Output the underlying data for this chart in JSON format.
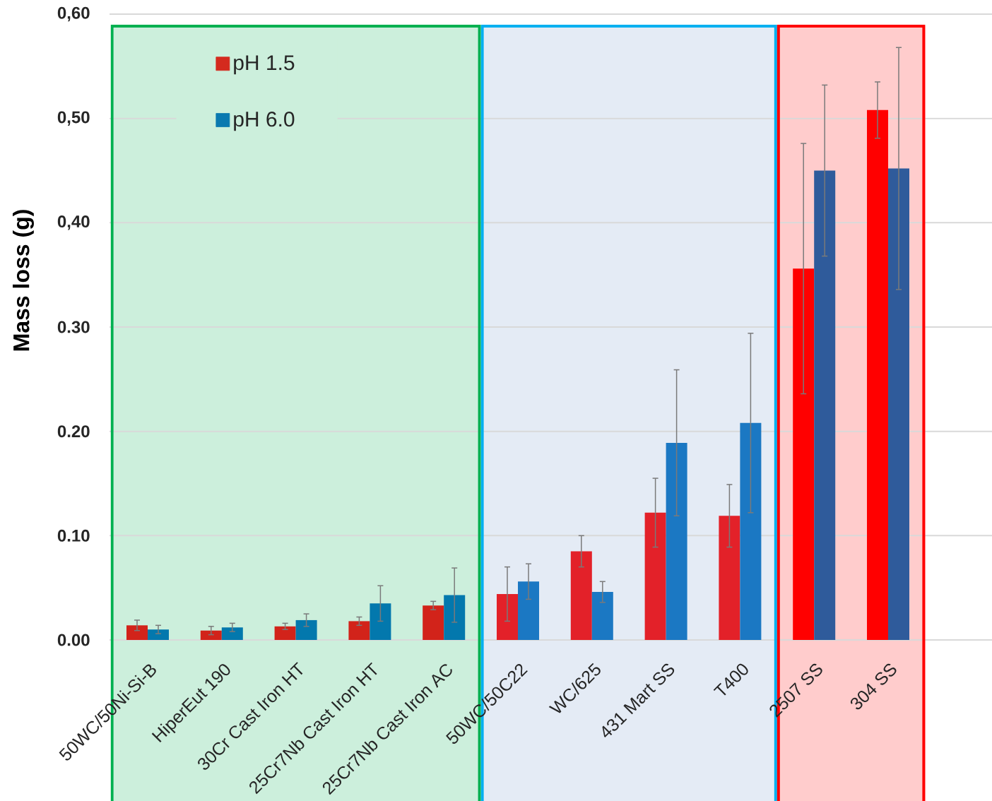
{
  "chart_data": {
    "type": "bar",
    "ylabel": "Mass loss (g)",
    "categories": [
      "50WC/50Ni-Si-B",
      "HiperEut 190",
      "30Cr Cast Iron HT",
      "25Cr7Nb Cast Iron HT",
      "25Cr7Nb Cast Iron AC",
      "50WC/50C22",
      "WC/625",
      "431 Mart SS",
      "T400",
      "2507 SS",
      "304 SS"
    ],
    "series": [
      {
        "name": "pH 1.5",
        "color": "#d42a1e",
        "colors": [
          "#d2231a",
          "#d2231a",
          "#d2231a",
          "#d2231a",
          "#d2231a",
          "#e32129",
          "#e32129",
          "#e32129",
          "#e32129",
          "#ff0000",
          "#ff0000"
        ],
        "values": [
          0.014,
          0.009,
          0.013,
          0.018,
          0.033,
          0.044,
          0.085,
          0.122,
          0.119,
          0.356,
          0.508
        ],
        "errors": [
          0.005,
          0.004,
          0.003,
          0.004,
          0.004,
          0.026,
          0.015,
          0.033,
          0.03,
          0.12,
          0.027
        ]
      },
      {
        "name": "pH 6.0",
        "color": "#0a79b0",
        "colors": [
          "#0378ad",
          "#0378ad",
          "#0378ad",
          "#0378ad",
          "#0378ad",
          "#1b78c3",
          "#1b78c3",
          "#1b78c3",
          "#1b78c3",
          "#2f5b9b",
          "#2f5b9b"
        ],
        "values": [
          0.01,
          0.012,
          0.019,
          0.035,
          0.043,
          0.056,
          0.046,
          0.189,
          0.208,
          0.45,
          0.452
        ],
        "errors": [
          0.004,
          0.004,
          0.006,
          0.017,
          0.026,
          0.017,
          0.01,
          0.07,
          0.086,
          0.082,
          0.116
        ]
      }
    ],
    "ylim": [
      0,
      0.6
    ],
    "yticks": [
      {
        "value": 0,
        "label": "0.00"
      },
      {
        "value": 0.1,
        "label": "0.10"
      },
      {
        "value": 0.2,
        "label": "0.20"
      },
      {
        "value": 0.3,
        "label": "0.30"
      },
      {
        "value": 0.4,
        "label": "0,40"
      },
      {
        "value": 0.5,
        "label": "0,50"
      },
      {
        "value": 0.6,
        "label": "0,60"
      }
    ],
    "grid": "y",
    "legend": "top left",
    "bands": [
      {
        "axis": "x",
        "from": "50WC/50Ni-Si-B",
        "to": "25Cr7Nb Cast Iron AC",
        "color": "#ccefdc"
      },
      {
        "axis": "x",
        "from": "50WC/50C22",
        "to": "T400",
        "color": "#e4ebf5"
      },
      {
        "axis": "x",
        "from": "2507 SS",
        "to": "304 SS",
        "color": "#ffcccc"
      }
    ]
  }
}
